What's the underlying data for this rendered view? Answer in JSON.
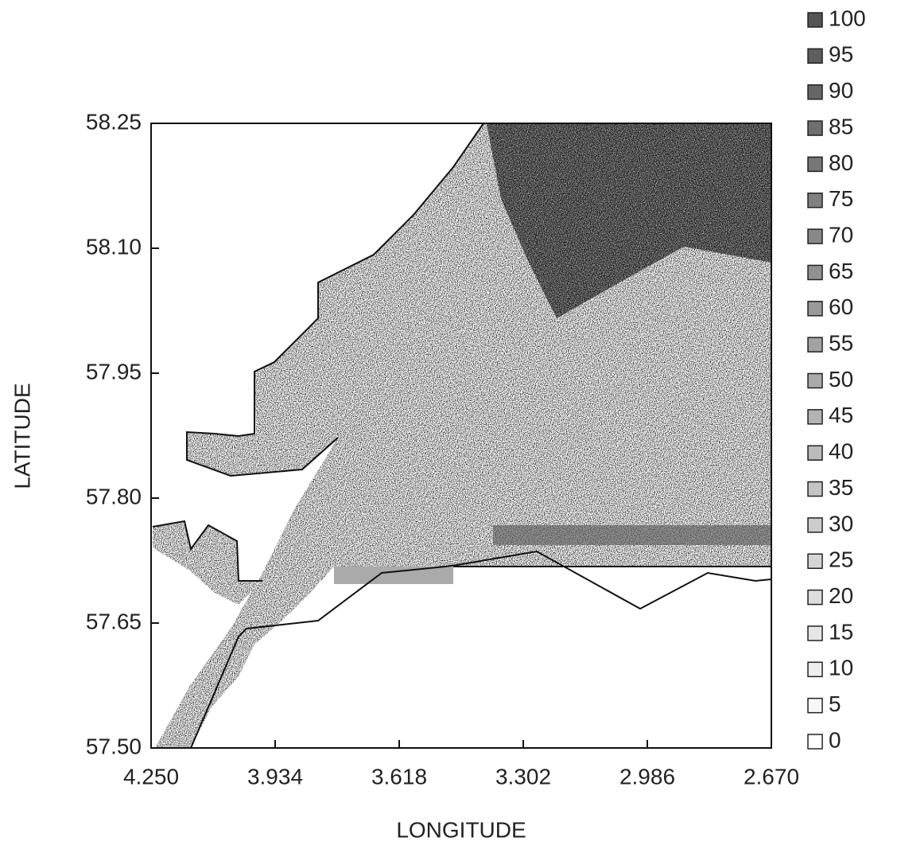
{
  "chart_data": {
    "type": "map",
    "xlabel": "LONGITUDE",
    "ylabel": "LATITUDE",
    "xlim": [
      4.25,
      2.67
    ],
    "ylim": [
      57.5,
      58.25
    ],
    "xticks": [
      {
        "value": 4.25,
        "label": "4.250"
      },
      3.934,
      3.618,
      3.302,
      2.986,
      {
        "value": 2.67,
        "label": "2.670"
      }
    ],
    "yticks": [
      {
        "value": 57.5,
        "label": "57.50"
      },
      57.65,
      {
        "value": 57.8,
        "label": "57.80"
      },
      57.95,
      {
        "value": 58.1,
        "label": "58.10"
      },
      58.25
    ],
    "legend_levels": [
      100,
      95,
      90,
      85,
      80,
      75,
      70,
      65,
      60,
      55,
      50,
      45,
      40,
      35,
      30,
      25,
      20,
      15,
      10,
      5,
      0
    ]
  }
}
